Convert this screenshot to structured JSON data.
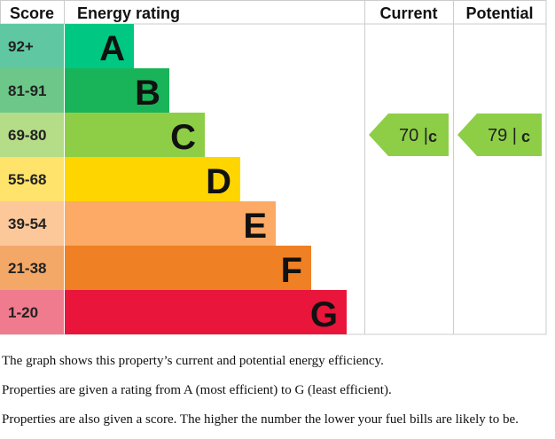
{
  "chart_data": {
    "type": "bar",
    "headers": {
      "score": "Score",
      "rating": "Energy rating",
      "current": "Current",
      "potential": "Potential"
    },
    "bands": [
      {
        "letter": "A",
        "range": "92+",
        "color": "#00c781",
        "score_color": "#5fc8a2"
      },
      {
        "letter": "B",
        "range": "81-91",
        "color": "#19b459",
        "score_color": "#6cc788"
      },
      {
        "letter": "C",
        "range": "69-80",
        "color": "#8dce46",
        "score_color": "#b5dd88"
      },
      {
        "letter": "D",
        "range": "55-68",
        "color": "#ffd500",
        "score_color": "#ffe36a"
      },
      {
        "letter": "E",
        "range": "39-54",
        "color": "#fcaa65",
        "score_color": "#fcc89a"
      },
      {
        "letter": "F",
        "range": "21-38",
        "color": "#ef8023",
        "score_color": "#f4a868"
      },
      {
        "letter": "G",
        "range": "1-20",
        "color": "#e9153b",
        "score_color": "#f07b8e"
      }
    ],
    "current": {
      "value": 70,
      "letter": "C",
      "label": "70 |",
      "color": "#8dce46"
    },
    "potential": {
      "value": 79,
      "letter": "C",
      "label": "79 |",
      "color": "#8dce46"
    },
    "grid_color": "#cccccc"
  },
  "notes": [
    "The graph shows this property’s current and potential energy efficiency.",
    "Properties are given a rating from A (most efficient) to G (least efficient).",
    "Properties are also given a score. The higher the number the lower your fuel bills are likely to be."
  ]
}
